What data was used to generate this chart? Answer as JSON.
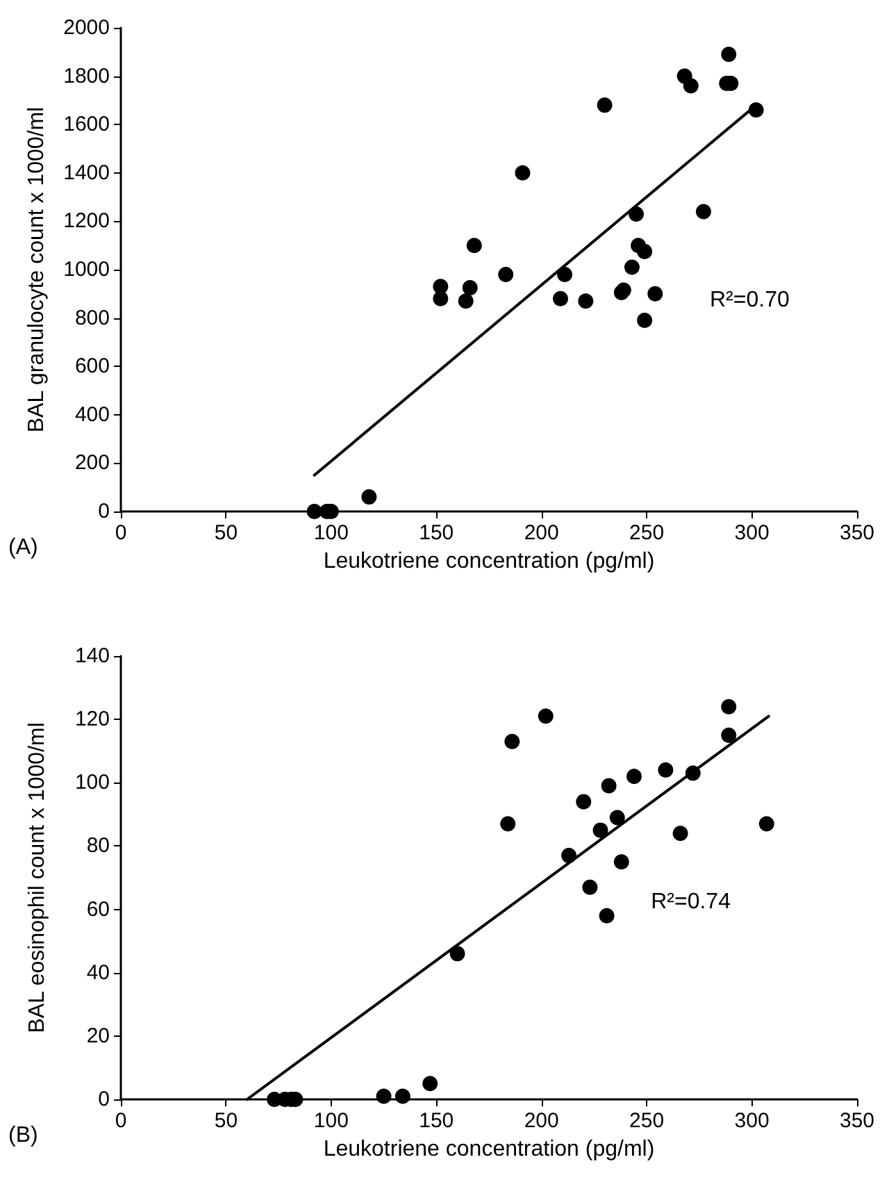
{
  "chart_data": [
    {
      "type": "scatter",
      "xlabel": "Leukotriene concentration (pg/ml)",
      "ylabel": "BAL granulocyte count x 1000/ml",
      "xlim": [
        0,
        350
      ],
      "xticks": [
        0,
        50,
        100,
        150,
        200,
        250,
        300,
        350
      ],
      "ylim": [
        0,
        2000
      ],
      "yticks": [
        0,
        200,
        400,
        600,
        800,
        1000,
        1200,
        1400,
        1600,
        1800,
        2000
      ],
      "grid": false,
      "marker": "circle",
      "annotations": [
        "(A)",
        "R²=0.70"
      ],
      "series": [
        {
          "color": "#000000",
          "x": [
            92,
            98,
            100,
            118,
            152,
            152,
            164,
            166,
            168,
            183,
            191,
            209,
            211,
            221,
            230,
            238,
            239,
            243,
            245,
            246,
            249,
            249,
            254,
            268,
            271,
            277,
            288,
            290,
            289,
            302
          ],
          "values": [
            0,
            0,
            0,
            60,
            880,
            930,
            870,
            925,
            1100,
            980,
            1400,
            880,
            980,
            870,
            1680,
            905,
            915,
            1010,
            1230,
            1100,
            1075,
            790,
            900,
            1800,
            1760,
            1240,
            1770,
            1770,
            1890,
            1660
          ]
        },
        {
          "type": "line",
          "color": "#000000",
          "marker": "none",
          "line_style": "solid",
          "x": [
            92,
            302
          ],
          "values": [
            150,
            1680
          ]
        }
      ]
    },
    {
      "type": "scatter",
      "xlabel": "Leukotriene concentration (pg/ml)",
      "ylabel": "BAL eosinophil count x 1000/ml",
      "xlim": [
        0,
        350
      ],
      "xticks": [
        0,
        50,
        100,
        150,
        200,
        250,
        300,
        350
      ],
      "ylim": [
        0,
        140
      ],
      "yticks": [
        0,
        20,
        40,
        60,
        80,
        100,
        120,
        140
      ],
      "grid": false,
      "marker": "circle",
      "annotations": [
        "(B)",
        "R²=0.74"
      ],
      "series": [
        {
          "color": "#000000",
          "x": [
            73,
            78,
            81,
            83,
            125,
            134,
            147,
            160,
            184,
            186,
            202,
            213,
            220,
            223,
            228,
            231,
            232,
            236,
            238,
            244,
            259,
            266,
            272,
            289,
            289,
            307
          ],
          "values": [
            0,
            0,
            0,
            0,
            1,
            1,
            5,
            46,
            87,
            113,
            121,
            77,
            94,
            67,
            85,
            58,
            99,
            89,
            75,
            102,
            104,
            84,
            103,
            124,
            115,
            87
          ]
        },
        {
          "type": "line",
          "color": "#000000",
          "marker": "none",
          "line_style": "solid",
          "x": [
            60,
            308
          ],
          "values": [
            0,
            121
          ]
        }
      ]
    }
  ]
}
